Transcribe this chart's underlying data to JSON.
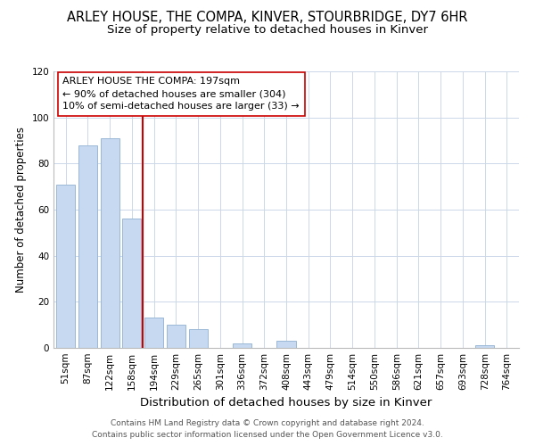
{
  "title": "ARLEY HOUSE, THE COMPA, KINVER, STOURBRIDGE, DY7 6HR",
  "subtitle": "Size of property relative to detached houses in Kinver",
  "xlabel": "Distribution of detached houses by size in Kinver",
  "ylabel": "Number of detached properties",
  "bar_labels": [
    "51sqm",
    "87sqm",
    "122sqm",
    "158sqm",
    "194sqm",
    "229sqm",
    "265sqm",
    "301sqm",
    "336sqm",
    "372sqm",
    "408sqm",
    "443sqm",
    "479sqm",
    "514sqm",
    "550sqm",
    "586sqm",
    "621sqm",
    "657sqm",
    "693sqm",
    "728sqm",
    "764sqm"
  ],
  "bar_values": [
    71,
    88,
    91,
    56,
    13,
    10,
    8,
    0,
    2,
    0,
    3,
    0,
    0,
    0,
    0,
    0,
    0,
    0,
    0,
    1,
    0
  ],
  "bar_color": "#c6d9f0",
  "bar_edge_color": "#9ab8d8",
  "highlight_line_color": "#cc0000",
  "annotation_line1": "ARLEY HOUSE THE COMPA: 197sqm",
  "annotation_line2": "← 90% of detached houses are smaller (304)",
  "annotation_line3": "10% of semi-detached houses are larger (33) →",
  "annotation_box_color": "#ffffff",
  "annotation_box_edge_color": "#cc0000",
  "ylim": [
    0,
    120
  ],
  "yticks": [
    0,
    20,
    40,
    60,
    80,
    100,
    120
  ],
  "footer_line1": "Contains HM Land Registry data © Crown copyright and database right 2024.",
  "footer_line2": "Contains public sector information licensed under the Open Government Licence v3.0.",
  "background_color": "#ffffff",
  "grid_color": "#ccd8ea",
  "title_fontsize": 10.5,
  "subtitle_fontsize": 9.5,
  "xlabel_fontsize": 9.5,
  "ylabel_fontsize": 8.5,
  "tick_fontsize": 7.5,
  "annotation_fontsize": 8,
  "footer_fontsize": 6.5
}
